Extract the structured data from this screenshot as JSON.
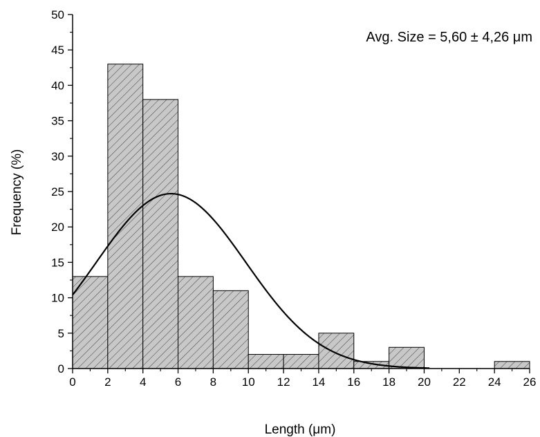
{
  "chart_data": {
    "type": "bar",
    "title": "",
    "xlabel": "Length (μm)",
    "ylabel": "Frequency (%)",
    "annotation": "Avg. Size = 5,60 ± 4,26 μm",
    "xlim": [
      0,
      26
    ],
    "ylim": [
      0,
      50
    ],
    "x_ticks": [
      0,
      2,
      4,
      6,
      8,
      10,
      12,
      14,
      16,
      18,
      20,
      22,
      24,
      26
    ],
    "y_ticks": [
      0,
      5,
      10,
      15,
      20,
      25,
      30,
      35,
      40,
      45,
      50
    ],
    "bin_width": 2,
    "bins": [
      {
        "x0": 0,
        "x1": 2,
        "value": 13
      },
      {
        "x0": 2,
        "x1": 4,
        "value": 43
      },
      {
        "x0": 4,
        "x1": 6,
        "value": 38
      },
      {
        "x0": 6,
        "x1": 8,
        "value": 13
      },
      {
        "x0": 8,
        "x1": 10,
        "value": 11
      },
      {
        "x0": 10,
        "x1": 12,
        "value": 2
      },
      {
        "x0": 12,
        "x1": 14,
        "value": 2
      },
      {
        "x0": 14,
        "x1": 16,
        "value": 5
      },
      {
        "x0": 16,
        "x1": 18,
        "value": 1
      },
      {
        "x0": 18,
        "x1": 20,
        "value": 3
      },
      {
        "x0": 24,
        "x1": 26,
        "value": 1
      }
    ],
    "fit_curve": {
      "type": "normal",
      "mean": 5.6,
      "std": 4.26,
      "x_start": 0,
      "x_end": 20.3,
      "peak_value": 24.7
    },
    "bar_fill": "#c8c8c8",
    "bar_hatch": "diagonal",
    "grid": false,
    "legend": "none"
  }
}
